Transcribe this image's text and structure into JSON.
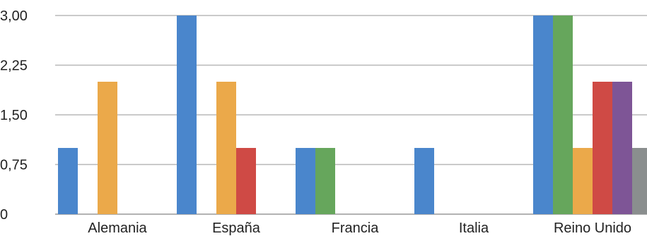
{
  "chart_data": {
    "type": "bar",
    "title": "",
    "xlabel": "",
    "ylabel": "",
    "ylim": [
      0,
      3
    ],
    "yticks": [
      0,
      0.75,
      1.5,
      2.25,
      3
    ],
    "ytick_labels": [
      "0",
      "0,75",
      "1,50",
      "2,25",
      "3,00"
    ],
    "grid": true,
    "legend": "none",
    "categories": [
      "Alemania",
      "España",
      "Francia",
      "Italia",
      "Reino Unido"
    ],
    "series": [
      {
        "color": "#4a86cc",
        "values": [
          1,
          3,
          1,
          1,
          3
        ]
      },
      {
        "color": "#66a65c",
        "values": [
          0,
          0,
          1,
          0,
          3
        ]
      },
      {
        "color": "#eba94a",
        "values": [
          2,
          2,
          0,
          0,
          1
        ]
      },
      {
        "color": "#cf4a45",
        "values": [
          0,
          1,
          0,
          0,
          2
        ]
      },
      {
        "color": "#7e5596",
        "values": [
          0,
          0,
          0,
          0,
          2
        ]
      },
      {
        "color": "#8a8e8e",
        "values": [
          0,
          0,
          0,
          0,
          1
        ]
      }
    ]
  }
}
